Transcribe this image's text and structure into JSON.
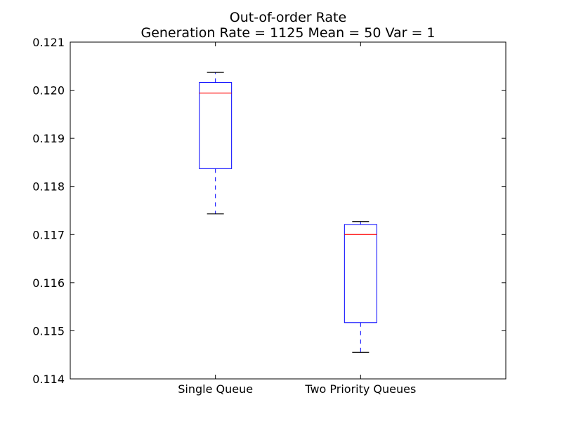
{
  "chart_data": {
    "type": "box",
    "title": "Out-of-order Rate",
    "subtitle": "Generation Rate = 1125 Mean = 50 Var = 1",
    "xlabel": "",
    "ylabel": "",
    "ylim": [
      0.114,
      0.121
    ],
    "y_ticks": [
      "0.114",
      "0.115",
      "0.116",
      "0.117",
      "0.118",
      "0.119",
      "0.120",
      "0.121"
    ],
    "grid": false,
    "categories": [
      "Single Queue",
      "Two Priority Queues"
    ],
    "boxes": [
      {
        "category": "Single Queue",
        "whisker_low": 0.11743,
        "q1": 0.11837,
        "median": 0.11994,
        "q3": 0.12016,
        "whisker_high": 0.12037
      },
      {
        "category": "Two Priority Queues",
        "whisker_low": 0.11455,
        "q1": 0.11517,
        "median": 0.117,
        "q3": 0.11721,
        "whisker_high": 0.11727
      }
    ],
    "colors": {
      "box": "#0000ff",
      "median": "#ff0000",
      "whisker": "#0000ff",
      "cap": "#000000",
      "axes": "#000000"
    }
  }
}
